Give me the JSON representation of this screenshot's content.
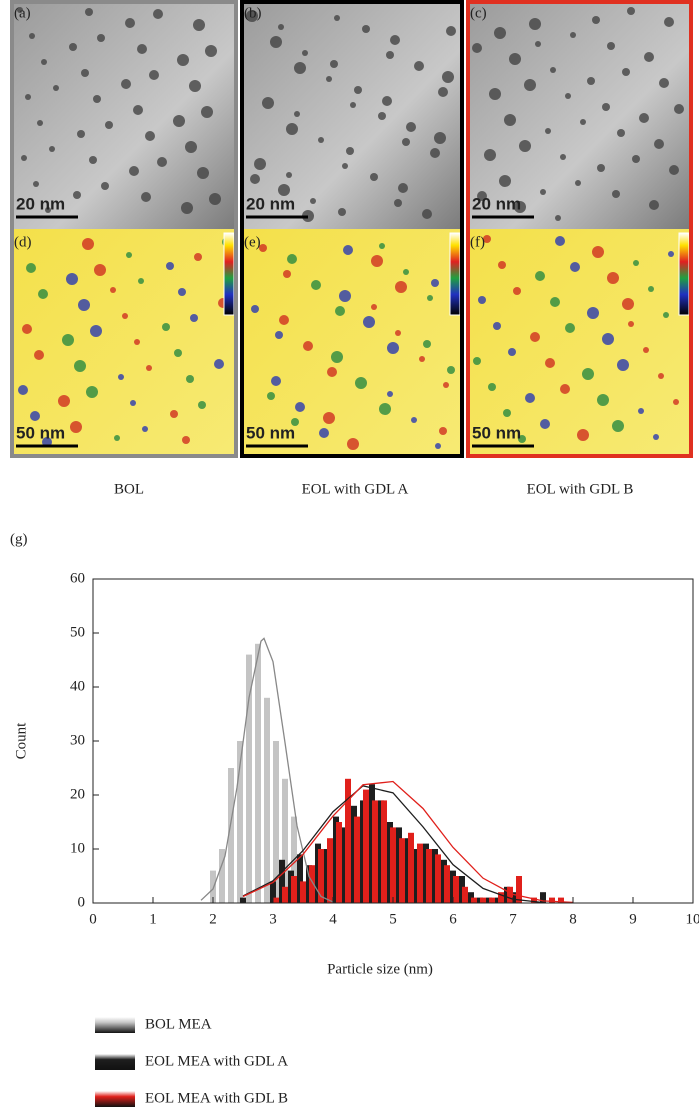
{
  "panels": [
    {
      "label": "(a)",
      "scale": "20 nm"
    },
    {
      "label": "(b)",
      "scale": "20 nm"
    },
    {
      "label": "(c)",
      "scale": "20 nm"
    },
    {
      "label": "(d)",
      "scale": "50 nm"
    },
    {
      "label": "(e)",
      "scale": "50 nm"
    },
    {
      "label": "(f)",
      "scale": "50 nm"
    }
  ],
  "captions": [
    "BOL",
    "EOL with GDL A",
    "EOL with GDL B"
  ],
  "figure_label": "(g)",
  "chart_data": {
    "type": "bar",
    "xlabel": "Particle size (nm)",
    "ylabel": "Count",
    "xlim": [
      0,
      10
    ],
    "xticks": [
      0,
      1,
      2,
      3,
      4,
      5,
      6,
      7,
      8,
      9,
      10
    ],
    "ylim": [
      0,
      60
    ],
    "yticks": [
      0,
      10,
      20,
      30,
      40,
      50,
      60
    ],
    "series": [
      {
        "name": "BOL MEA",
        "color": "#c4c4c4",
        "x": [
          2.0,
          2.15,
          2.3,
          2.45,
          2.6,
          2.75,
          2.9,
          3.05,
          3.2,
          3.35
        ],
        "values": [
          6,
          10,
          25,
          30,
          46,
          48,
          38,
          30,
          23,
          16
        ]
      },
      {
        "name": "EOL MEA with GDL A",
        "color": "#1e1e1e",
        "x": [
          2.5,
          3.0,
          3.15,
          3.3,
          3.45,
          3.6,
          3.75,
          3.9,
          4.05,
          4.2,
          4.35,
          4.5,
          4.65,
          4.8,
          4.95,
          5.1,
          5.25,
          5.4,
          5.55,
          5.7,
          5.85,
          6.0,
          6.15,
          6.3,
          6.45,
          6.6,
          6.75,
          6.9,
          7.05,
          7.5
        ],
        "values": [
          1,
          4,
          8,
          6,
          9,
          7,
          11,
          10,
          16,
          14,
          18,
          19,
          22,
          19,
          15,
          14,
          12,
          10,
          11,
          10,
          8,
          6,
          5,
          2,
          1,
          1,
          1,
          3,
          2,
          2
        ]
      },
      {
        "name": "EOL MEA with GDL B",
        "color": "#e0201b",
        "x": [
          3.05,
          3.2,
          3.35,
          3.5,
          3.65,
          3.8,
          3.95,
          4.1,
          4.25,
          4.4,
          4.55,
          4.7,
          4.85,
          5.0,
          5.15,
          5.3,
          5.45,
          5.6,
          5.75,
          5.9,
          6.05,
          6.2,
          6.35,
          6.5,
          6.65,
          6.8,
          6.95,
          7.1,
          7.35,
          7.65,
          7.8
        ],
        "values": [
          1,
          3,
          5,
          4,
          7,
          10,
          12,
          15,
          23,
          16,
          21,
          19,
          19,
          14,
          12,
          13,
          11,
          10,
          9,
          7,
          5,
          3,
          1,
          1,
          1,
          2,
          3,
          5,
          1,
          1,
          1
        ]
      }
    ],
    "fits": [
      {
        "color": "#888888",
        "x": [
          1.8,
          2.0,
          2.2,
          2.4,
          2.6,
          2.8,
          2.85,
          3.0,
          3.2,
          3.4,
          3.6,
          3.8,
          4.0
        ],
        "values": [
          0.5,
          2.6,
          8.7,
          21.4,
          38,
          48.5,
          49,
          44.7,
          29.7,
          14.3,
          4.9,
          1.2,
          0.2
        ]
      },
      {
        "color": "#1e1e1e",
        "x": [
          2.5,
          3.0,
          3.5,
          4.0,
          4.5,
          5.0,
          5.5,
          6.0,
          6.5,
          7.0,
          7.5
        ],
        "values": [
          1.3,
          4.1,
          9.7,
          16.9,
          21.7,
          20.4,
          14.1,
          7.1,
          2.7,
          0.7,
          0.1
        ]
      },
      {
        "color": "#e0201b",
        "x": [
          2.5,
          3.0,
          3.5,
          4.0,
          4.5,
          5.0,
          5.5,
          6.0,
          6.5,
          7.0,
          7.5,
          8.0
        ],
        "values": [
          1.2,
          3.8,
          9.0,
          16.1,
          21.9,
          22.5,
          17.5,
          10.3,
          4.6,
          1.6,
          0.4,
          0.1
        ]
      }
    ]
  }
}
